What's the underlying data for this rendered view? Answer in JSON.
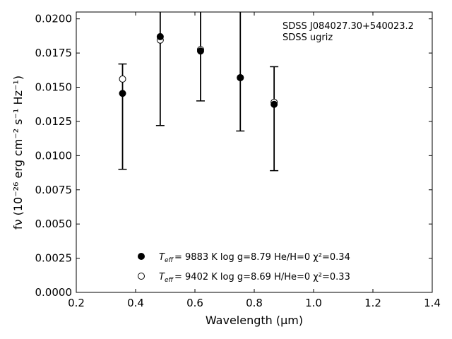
{
  "chart_data": {
    "type": "scatter",
    "annotation": [
      "SDSS J084027.30+540023.2",
      "SDSS ugriz"
    ],
    "xlabel": "Wavelength (μm)",
    "ylabel": "fν (10⁻²⁶ erg cm⁻² s⁻¹ Hz⁻¹)",
    "xlim": [
      0.2,
      1.4
    ],
    "ylim": [
      0.0,
      0.0205
    ],
    "xticks": [
      "0.2",
      "0.4",
      "0.6",
      "0.8",
      "1.0",
      "1.2",
      "1.4"
    ],
    "yticks": [
      "0.0000",
      "0.0025",
      "0.0050",
      "0.0075",
      "0.0100",
      "0.0125",
      "0.0150",
      "0.0175",
      "0.0200"
    ],
    "observed": {
      "x": [
        0.356,
        0.483,
        0.619,
        0.753,
        0.867
      ],
      "y_lower": [
        0.009,
        0.0122,
        0.014,
        0.0118,
        0.0089
      ],
      "y_upper": [
        0.0167,
        0.0205,
        0.0205,
        0.0205,
        0.0165
      ]
    },
    "series": [
      {
        "marker": "filled-circle",
        "legend": "= 9883 K  log g=8.79  He/H=0  χ²=0.34",
        "x": [
          0.356,
          0.483,
          0.619,
          0.753,
          0.867
        ],
        "y": [
          0.01455,
          0.0187,
          0.01765,
          0.0157,
          0.01375
        ]
      },
      {
        "marker": "open-circle",
        "legend": "= 9402 K  log g=8.69  H/He=0  χ²=0.33",
        "x": [
          0.356,
          0.483,
          0.619,
          0.753,
          0.867
        ],
        "y": [
          0.0156,
          0.01845,
          0.01775,
          0.0157,
          0.0139
        ]
      }
    ]
  }
}
